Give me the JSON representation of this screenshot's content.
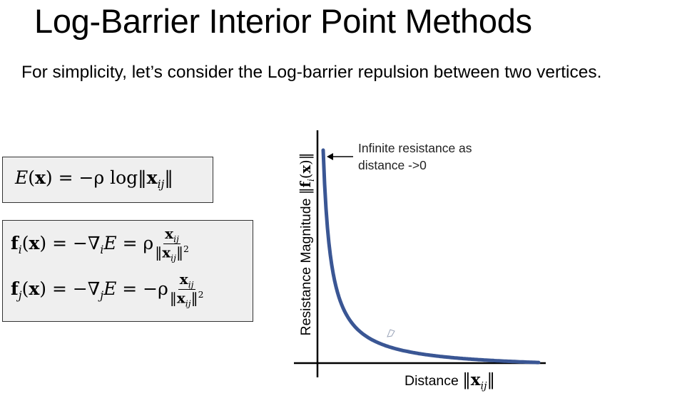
{
  "slide": {
    "title": "Log-Barrier Interior Point Methods",
    "subtitle": "For simplicity, let’s consider the Log-barrier repulsion between two vertices."
  },
  "equations": {
    "energy": {
      "lhs_fn": "E",
      "lhs_arg": "x",
      "rhs": "= −ρ log",
      "norm_var": "x",
      "norm_sub": "ij"
    },
    "force_i": {
      "fn": "f",
      "sub": "i",
      "arg": "x",
      "mid": "= −∇",
      "grad_sub": "i",
      "energy": "E",
      "eq": "= ρ",
      "num_var": "x",
      "num_sub": "ij",
      "den_var": "x",
      "den_sub": "ij",
      "den_pow": "2"
    },
    "force_j": {
      "fn": "f",
      "sub": "j",
      "arg": "x",
      "mid": "= −∇",
      "grad_sub": "j",
      "energy": "E",
      "eq": "= −ρ",
      "num_var": "x",
      "num_sub": "ij",
      "den_var": "x",
      "den_sub": "ij",
      "den_pow": "2"
    }
  },
  "graph": {
    "ylabel_text": "Resistance Magnitude",
    "ylabel_var": "f",
    "ylabel_sub": "i",
    "ylabel_arg": "x",
    "xlabel_text": "Distance",
    "xlabel_var": "x",
    "xlabel_sub": "ij",
    "annotation_line1": "Infinite resistance as",
    "annotation_line2": "distance ->0",
    "curve_color": "#3a5694"
  }
}
